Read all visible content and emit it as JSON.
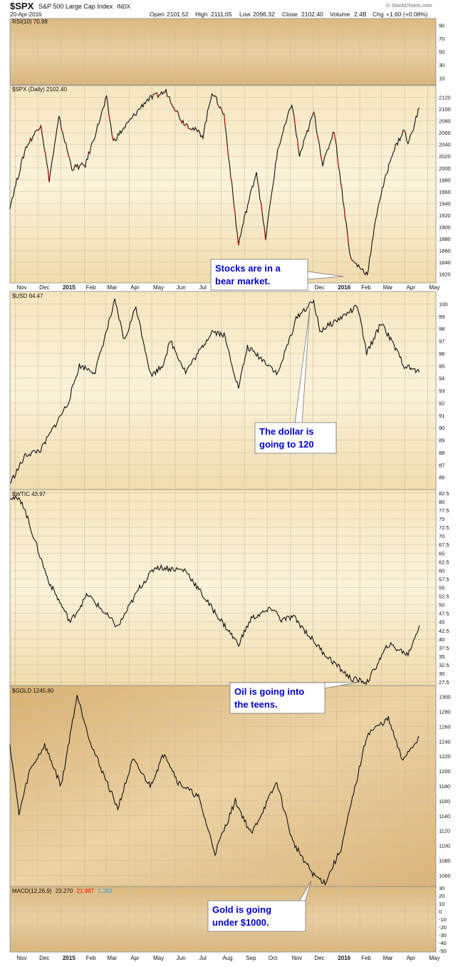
{
  "header": {
    "symbol": "$SPX",
    "name": "S&P 500 Large Cap Index",
    "exchange": "INDX",
    "date": "20-Apr-2016",
    "open_label": "Open",
    "open": "2101.52",
    "high_label": "High",
    "high": "2111.05",
    "low_label": "Low",
    "low": "2096.32",
    "close_label": "Close",
    "close": "2102.40",
    "volume_label": "Volume",
    "volume": "2.4B",
    "chg_label": "Chg",
    "chg": "+1.60 (+0.08%)",
    "watermark": "© StockCharts.com"
  },
  "colors": {
    "panel_bg_dark": "#e3c594",
    "panel_bg_light": "#f8eccc",
    "grid": "#c9b898",
    "border": "#8c8c8c",
    "ink": "#1a1a1a",
    "down_candle": "#cc0000",
    "annotation_text": "#0000cc",
    "macd_signal": "#ff0000",
    "macd_hist": "#3399cc"
  },
  "annotations": {
    "stocks": [
      "Stocks are in a",
      "bear market."
    ],
    "dollar": [
      "The dollar is",
      "going to 120"
    ],
    "oil": [
      "Oil is going into",
      "the teens."
    ],
    "gold": [
      "Gold is going",
      "under $1000."
    ]
  },
  "chart_data": [
    {
      "type": "line",
      "panel": "rsi",
      "label": "RSI(10) 70.98",
      "y_ticks": [
        90,
        70,
        50,
        30,
        10
      ],
      "ylim": [
        0,
        100
      ],
      "x": [],
      "values": []
    },
    {
      "type": "line",
      "panel": "spx",
      "label": "$SPX (Daily) 2102.40",
      "y_ticks": [
        2120,
        2100,
        2080,
        2060,
        2040,
        2020,
        2000,
        1980,
        1960,
        1940,
        1920,
        1900,
        1880,
        1860,
        1840,
        1820
      ],
      "ylim": [
        1805,
        2140
      ],
      "x": [
        "2014-10-25",
        "2014-11-15",
        "2014-12-05",
        "2014-12-16",
        "2014-12-29",
        "2015-01-15",
        "2015-02-02",
        "2015-03-02",
        "2015-03-11",
        "2015-04-24",
        "2015-05-20",
        "2015-06-10",
        "2015-07-08",
        "2015-07-20",
        "2015-08-05",
        "2015-08-24",
        "2015-09-01",
        "2015-09-17",
        "2015-09-29",
        "2015-10-15",
        "2015-11-03",
        "2015-11-13",
        "2015-12-02",
        "2015-12-14",
        "2015-12-29",
        "2016-01-20",
        "2016-02-11",
        "2016-02-25",
        "2016-03-15",
        "2016-03-31",
        "2016-04-05",
        "2016-04-20"
      ],
      "values": [
        1935,
        2035,
        2075,
        1980,
        2085,
        2000,
        2005,
        2118,
        2045,
        2115,
        2130,
        2080,
        2055,
        2130,
        2090,
        1870,
        1915,
        1995,
        1880,
        2030,
        2110,
        2020,
        2095,
        2005,
        2065,
        1845,
        1820,
        1935,
        2025,
        2065,
        2040,
        2102
      ]
    },
    {
      "type": "line",
      "panel": "usd",
      "label": "$USD 94.47",
      "y_ticks": [
        100,
        99,
        98,
        97,
        96,
        95,
        94,
        93,
        92,
        91,
        90,
        89,
        88,
        87,
        86
      ],
      "ylim": [
        85.0,
        101.0
      ],
      "x": [
        "2014-10-25",
        "2014-11-15",
        "2014-12-05",
        "2014-12-20",
        "2015-01-10",
        "2015-01-25",
        "2015-02-15",
        "2015-03-13",
        "2015-03-26",
        "2015-04-10",
        "2015-04-30",
        "2015-05-15",
        "2015-05-26",
        "2015-06-15",
        "2015-07-07",
        "2015-07-20",
        "2015-08-05",
        "2015-08-24",
        "2015-09-05",
        "2015-10-05",
        "2015-10-15",
        "2015-11-10",
        "2015-12-02",
        "2015-12-10",
        "2016-01-05",
        "2016-01-29",
        "2016-02-10",
        "2016-03-01",
        "2016-03-31",
        "2016-04-20"
      ],
      "values": [
        85.5,
        87.8,
        88.2,
        89.8,
        92.0,
        95.0,
        94.5,
        100.2,
        97.0,
        99.8,
        94.2,
        95.0,
        97.0,
        94.5,
        96.5,
        97.8,
        97.5,
        93.2,
        96.5,
        95.0,
        94.3,
        99.0,
        100.2,
        97.8,
        98.8,
        99.8,
        96.0,
        98.5,
        95.0,
        94.47
      ]
    },
    {
      "type": "line",
      "panel": "wtic",
      "label": "$WTIC 43.97",
      "y_ticks": [
        82.5,
        80.0,
        77.5,
        75.0,
        72.5,
        70.0,
        67.5,
        65.0,
        62.5,
        60.0,
        57.5,
        55.0,
        52.5,
        50.0,
        47.5,
        45.0,
        42.5,
        40.0,
        37.5,
        35.0,
        32.5,
        30.0,
        27.5
      ],
      "ylim": [
        26.5,
        83.5
      ],
      "x": [
        "2014-10-25",
        "2014-11-10",
        "2014-11-28",
        "2014-12-15",
        "2015-01-13",
        "2015-02-05",
        "2015-03-17",
        "2015-04-15",
        "2015-05-06",
        "2015-06-15",
        "2015-07-10",
        "2015-08-24",
        "2015-09-10",
        "2015-10-09",
        "2015-10-20",
        "2015-11-05",
        "2015-12-15",
        "2016-01-20",
        "2016-02-11",
        "2016-03-10",
        "2016-04-05",
        "2016-04-20"
      ],
      "values": [
        81.5,
        80.0,
        68.0,
        57.0,
        45.0,
        53.0,
        43.5,
        55.0,
        61.0,
        60.0,
        52.0,
        38.5,
        46.0,
        49.0,
        45.5,
        46.5,
        36.0,
        28.5,
        27.5,
        38.5,
        35.5,
        43.97
      ]
    },
    {
      "type": "line",
      "panel": "gold",
      "label": "$GOLD 1245.80",
      "y_ticks": [
        1300,
        1280,
        1260,
        1240,
        1220,
        1200,
        1180,
        1160,
        1140,
        1120,
        1100,
        1080,
        1060
      ],
      "ylim": [
        1045,
        1315
      ],
      "x": [
        "2014-10-25",
        "2014-11-06",
        "2014-11-20",
        "2014-12-10",
        "2015-01-01",
        "2015-01-22",
        "2015-02-10",
        "2015-03-17",
        "2015-04-06",
        "2015-04-29",
        "2015-05-18",
        "2015-06-05",
        "2015-07-02",
        "2015-07-24",
        "2015-08-20",
        "2015-09-10",
        "2015-10-14",
        "2015-11-04",
        "2015-12-02",
        "2015-12-17",
        "2016-01-07",
        "2016-02-11",
        "2016-03-10",
        "2016-03-28",
        "2016-04-20"
      ],
      "values": [
        1235,
        1142,
        1200,
        1235,
        1180,
        1302,
        1235,
        1150,
        1215,
        1180,
        1225,
        1185,
        1165,
        1090,
        1160,
        1115,
        1185,
        1105,
        1060,
        1050,
        1095,
        1250,
        1270,
        1215,
        1245.8
      ]
    },
    {
      "type": "line",
      "panel": "macd",
      "label": "MACD(12,26,9)",
      "label_values": [
        "23.270",
        "21.987",
        "1.283"
      ],
      "y_ticks": [
        30,
        20,
        10,
        0,
        -10,
        -20,
        -30,
        -40,
        -50
      ],
      "ylim": [
        -52,
        32
      ],
      "x": [],
      "values": []
    }
  ],
  "x_axis": {
    "start": "2014-10-25",
    "end": "2016-05-12",
    "ticks": [
      {
        "date": "2014-11-01",
        "label": "Nov",
        "bold": false
      },
      {
        "date": "2014-12-01",
        "label": "Dec",
        "bold": false
      },
      {
        "date": "2015-01-01",
        "label": "2015",
        "bold": true
      },
      {
        "date": "2015-02-01",
        "label": "Feb",
        "bold": false
      },
      {
        "date": "2015-03-01",
        "label": "Mar",
        "bold": false
      },
      {
        "date": "2015-04-01",
        "label": "Apr",
        "bold": false
      },
      {
        "date": "2015-05-01",
        "label": "May",
        "bold": false
      },
      {
        "date": "2015-06-01",
        "label": "Jun",
        "bold": false
      },
      {
        "date": "2015-07-01",
        "label": "Jul",
        "bold": false
      },
      {
        "date": "2015-08-01",
        "label": "Aug",
        "bold": false
      },
      {
        "date": "2015-09-01",
        "label": "Sep",
        "bold": false
      },
      {
        "date": "2015-10-01",
        "label": "Oct",
        "bold": false
      },
      {
        "date": "2015-11-01",
        "label": "Nov",
        "bold": false
      },
      {
        "date": "2015-12-01",
        "label": "Dec",
        "bold": false
      },
      {
        "date": "2016-01-01",
        "label": "2016",
        "bold": true
      },
      {
        "date": "2016-02-01",
        "label": "Feb",
        "bold": false
      },
      {
        "date": "2016-03-01",
        "label": "Mar",
        "bold": false
      },
      {
        "date": "2016-04-01",
        "label": "Apr",
        "bold": false
      },
      {
        "date": "2016-05-01",
        "label": "May",
        "bold": false
      }
    ]
  }
}
